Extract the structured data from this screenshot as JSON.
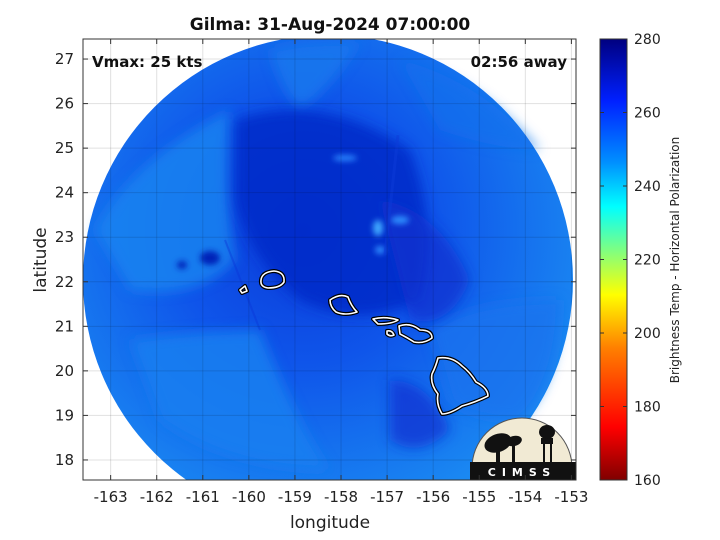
{
  "chart_data": {
    "type": "heatmap",
    "title": "Gilma: 31-Aug-2024 07:00:00",
    "xlabel": "longitude",
    "ylabel": "latitude",
    "xlim": [
      -163.6,
      -152.9
    ],
    "ylim": [
      17.55,
      27.45
    ],
    "x_ticks": [
      "-163",
      "-162",
      "-161",
      "-160",
      "-159",
      "-158",
      "-157",
      "-156",
      "-155",
      "-154",
      "-153"
    ],
    "y_ticks": [
      "18",
      "19",
      "20",
      "21",
      "22",
      "23",
      "24",
      "25",
      "26",
      "27"
    ],
    "grid": true,
    "annotations": {
      "vmax": "Vmax: 25 kts",
      "time_offset": "02:56 away"
    },
    "colorbar": {
      "label": "Brightness Temp - Horizontal Polarization",
      "range": [
        160,
        280
      ],
      "ticks": [
        "280",
        "260",
        "240",
        "220",
        "200",
        "180",
        "160"
      ],
      "colormap": [
        "#800000",
        "#ff0000",
        "#ff8000",
        "#ffff00",
        "#80ff80",
        "#00ffff",
        "#0080ff",
        "#0000ff",
        "#000080"
      ]
    },
    "field": {
      "center_lon": -158.3,
      "center_lat": 22.5,
      "radius_deg_lon": 5.55,
      "dominant_values_K": [
        245,
        255,
        263,
        268
      ]
    },
    "logo": "CIMSS"
  }
}
